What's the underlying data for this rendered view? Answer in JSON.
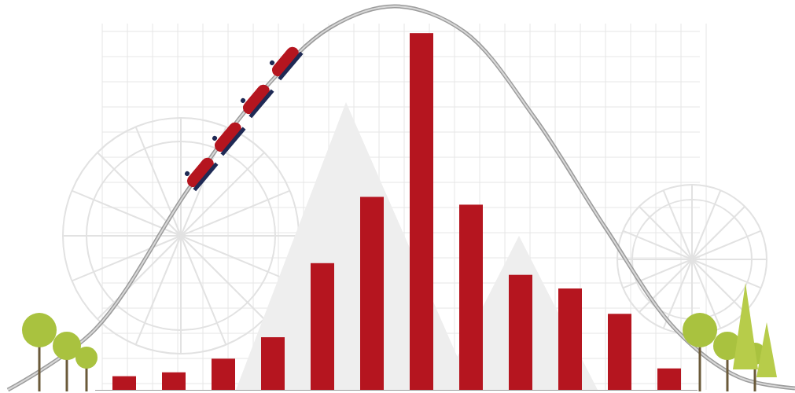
{
  "chart_data": {
    "type": "bar",
    "categories": [
      null,
      null,
      null,
      null,
      null,
      null,
      null,
      null,
      null,
      null,
      null,
      null
    ],
    "values": [
      3.5,
      4.5,
      8,
      13.5,
      32.5,
      49.5,
      91.5,
      47.5,
      29.5,
      26,
      19.5,
      5.5
    ],
    "color": "#b5151f",
    "ylim": [
      0,
      100
    ],
    "tick_labels": false,
    "grid": false
  }
}
